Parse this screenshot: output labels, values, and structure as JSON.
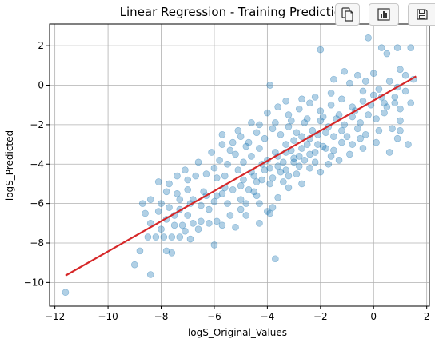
{
  "chart_data": {
    "type": "scatter",
    "title": "Linear Regression - Training Predictions",
    "xlabel": "logS_Original_Values",
    "ylabel": "logS_Predicted",
    "xlim": [
      -12.2,
      2.1
    ],
    "ylim": [
      -11.2,
      3.1
    ],
    "xticks": [
      -12,
      -10,
      -8,
      -6,
      -4,
      -2,
      0,
      2
    ],
    "yticks": [
      -10,
      -8,
      -6,
      -4,
      -2,
      0,
      2
    ],
    "xtick_labels": [
      "−12",
      "−10",
      "−8",
      "−6",
      "−4",
      "−2",
      "0",
      "2"
    ],
    "ytick_labels": [
      "−10",
      "−8",
      "−6",
      "−4",
      "−2",
      "0",
      "2"
    ],
    "grid": true,
    "series": [
      {
        "type": "scatter",
        "color": "#1f77b4",
        "alpha": 0.35,
        "points": [
          [
            -11.6,
            -10.5
          ],
          [
            -9.0,
            -9.1
          ],
          [
            -8.4,
            -9.6
          ],
          [
            -8.8,
            -8.4
          ],
          [
            -7.8,
            -8.4
          ],
          [
            -7.6,
            -8.5
          ],
          [
            -6.0,
            -8.1
          ],
          [
            -3.7,
            -8.8
          ],
          [
            -8.5,
            -7.7
          ],
          [
            -8.2,
            -7.7
          ],
          [
            -7.9,
            -7.7
          ],
          [
            -7.6,
            -7.7
          ],
          [
            -7.3,
            -7.7
          ],
          [
            -6.9,
            -7.8
          ],
          [
            -8.0,
            -7.3
          ],
          [
            -7.5,
            -7.1
          ],
          [
            -7.2,
            -7.1
          ],
          [
            -6.8,
            -7.0
          ],
          [
            -8.4,
            -7.0
          ],
          [
            -7.8,
            -6.8
          ],
          [
            -7.5,
            -6.6
          ],
          [
            -7.0,
            -6.6
          ],
          [
            -6.5,
            -6.9
          ],
          [
            -6.2,
            -7.0
          ],
          [
            -5.9,
            -6.9
          ],
          [
            -5.2,
            -7.2
          ],
          [
            -4.3,
            -7.0
          ],
          [
            -8.7,
            -6.0
          ],
          [
            -8.4,
            -5.8
          ],
          [
            -8.0,
            -6.0
          ],
          [
            -7.8,
            -5.4
          ],
          [
            -7.3,
            -5.8
          ],
          [
            -7.0,
            -5.3
          ],
          [
            -6.8,
            -5.8
          ],
          [
            -6.5,
            -6.1
          ],
          [
            -6.3,
            -5.6
          ],
          [
            -6.0,
            -5.9
          ],
          [
            -5.7,
            -5.5
          ],
          [
            -5.5,
            -6.0
          ],
          [
            -5.3,
            -5.3
          ],
          [
            -5.0,
            -5.8
          ],
          [
            -4.8,
            -6.0
          ],
          [
            -4.5,
            -5.4
          ],
          [
            -4.3,
            -6.0
          ],
          [
            -4.0,
            -6.4
          ],
          [
            -3.8,
            -6.2
          ],
          [
            -3.9,
            -6.5
          ],
          [
            -3.6,
            -5.7
          ],
          [
            -8.1,
            -4.9
          ],
          [
            -7.7,
            -5.0
          ],
          [
            -7.4,
            -4.6
          ],
          [
            -7.0,
            -4.8
          ],
          [
            -6.7,
            -4.6
          ],
          [
            -6.3,
            -4.5
          ],
          [
            -5.9,
            -4.7
          ],
          [
            -5.6,
            -4.6
          ],
          [
            -5.1,
            -4.3
          ],
          [
            -4.9,
            -4.8
          ],
          [
            -4.6,
            -4.4
          ],
          [
            -4.4,
            -4.9
          ],
          [
            -4.1,
            -4.3
          ],
          [
            -3.8,
            -4.7
          ],
          [
            -3.5,
            -4.4
          ],
          [
            -3.2,
            -4.6
          ],
          [
            -2.8,
            -4.1
          ],
          [
            -2.4,
            -4.2
          ],
          [
            -6.1,
            -3.4
          ],
          [
            -5.8,
            -3.8
          ],
          [
            -5.5,
            -4.0
          ],
          [
            -5.2,
            -3.5
          ],
          [
            -4.9,
            -3.9
          ],
          [
            -4.6,
            -3.6
          ],
          [
            -4.3,
            -3.2
          ],
          [
            -4.0,
            -3.8
          ],
          [
            -3.7,
            -3.4
          ],
          [
            -3.4,
            -3.9
          ],
          [
            -3.1,
            -3.3
          ],
          [
            -2.8,
            -3.6
          ],
          [
            -2.5,
            -3.0
          ],
          [
            -2.2,
            -3.4
          ],
          [
            -1.9,
            -3.1
          ],
          [
            -1.5,
            -3.3
          ],
          [
            -1.2,
            -2.9
          ],
          [
            -0.8,
            -3.0
          ],
          [
            -5.3,
            -2.9
          ],
          [
            -5.0,
            -2.6
          ],
          [
            -4.7,
            -2.9
          ],
          [
            -4.4,
            -2.4
          ],
          [
            -4.1,
            -2.7
          ],
          [
            -3.8,
            -2.2
          ],
          [
            -3.5,
            -2.5
          ],
          [
            -3.2,
            -2.1
          ],
          [
            -2.9,
            -2.4
          ],
          [
            -2.6,
            -1.9
          ],
          [
            -2.3,
            -2.3
          ],
          [
            -2.0,
            -1.8
          ],
          [
            -1.7,
            -2.1
          ],
          [
            -1.4,
            -1.7
          ],
          [
            -1.1,
            -2.0
          ],
          [
            -0.8,
            -1.6
          ],
          [
            -0.5,
            -1.9
          ],
          [
            -0.2,
            -1.5
          ],
          [
            0.1,
            -1.7
          ],
          [
            0.4,
            -1.4
          ],
          [
            0.7,
            -2.2
          ],
          [
            1.0,
            -1.8
          ],
          [
            -4.0,
            -1.4
          ],
          [
            -3.6,
            -1.1
          ],
          [
            -3.2,
            -1.5
          ],
          [
            -2.8,
            -1.2
          ],
          [
            -2.4,
            -0.9
          ],
          [
            -2.0,
            -1.3
          ],
          [
            -1.6,
            -1.0
          ],
          [
            -1.2,
            -0.7
          ],
          [
            -0.8,
            -1.1
          ],
          [
            -0.4,
            -0.8
          ],
          [
            0.0,
            -0.5
          ],
          [
            0.4,
            -0.9
          ],
          [
            0.8,
            -0.6
          ],
          [
            1.2,
            -0.3
          ],
          [
            -3.9,
            0.0
          ],
          [
            -1.5,
            0.3
          ],
          [
            -0.6,
            0.5
          ],
          [
            -0.2,
            2.4
          ],
          [
            0.3,
            1.9
          ],
          [
            0.5,
            1.6
          ],
          [
            0.9,
            1.9
          ],
          [
            1.4,
            1.9
          ],
          [
            -2.0,
            1.8
          ],
          [
            1.0,
            0.8
          ],
          [
            1.2,
            0.5
          ],
          [
            1.5,
            0.3
          ],
          [
            0.0,
            0.6
          ],
          [
            0.6,
            0.2
          ],
          [
            -1.1,
            0.7
          ],
          [
            -0.9,
            0.1
          ],
          [
            -0.4,
            -0.3
          ],
          [
            0.2,
            -0.2
          ],
          [
            0.9,
            -0.1
          ],
          [
            1.3,
            -3.0
          ],
          [
            0.9,
            -2.7
          ],
          [
            0.6,
            -3.4
          ],
          [
            1.0,
            -2.3
          ],
          [
            -0.5,
            -2.7
          ],
          [
            -3.3,
            -3.0
          ],
          [
            -3.0,
            -2.8
          ],
          [
            -2.7,
            -2.6
          ],
          [
            -2.4,
            -2.7
          ],
          [
            -2.1,
            -2.5
          ],
          [
            -1.8,
            -2.4
          ],
          [
            -1.5,
            -2.6
          ],
          [
            -1.2,
            -2.3
          ],
          [
            -3.6,
            -3.6
          ],
          [
            -3.3,
            -3.4
          ],
          [
            -3.0,
            -3.7
          ],
          [
            -2.7,
            -3.2
          ],
          [
            -2.4,
            -3.5
          ],
          [
            -2.1,
            -3.0
          ],
          [
            -1.8,
            -3.2
          ],
          [
            -4.2,
            -4.0
          ],
          [
            -3.9,
            -4.2
          ],
          [
            -3.6,
            -4.1
          ],
          [
            -3.3,
            -4.3
          ],
          [
            -3.0,
            -3.9
          ],
          [
            -4.5,
            -4.6
          ],
          [
            -4.2,
            -4.8
          ],
          [
            -3.9,
            -5.0
          ],
          [
            -5.0,
            -5.1
          ],
          [
            -4.7,
            -5.3
          ],
          [
            -4.4,
            -5.6
          ],
          [
            -5.6,
            -5.2
          ],
          [
            -5.9,
            -5.6
          ],
          [
            -6.4,
            -5.4
          ],
          [
            -3.4,
            -4.9
          ],
          [
            -2.9,
            -4.5
          ],
          [
            -2.6,
            -3.8
          ],
          [
            -2.2,
            -3.9
          ],
          [
            -1.6,
            -3.6
          ],
          [
            -1.0,
            -2.6
          ],
          [
            -0.6,
            -2.2
          ],
          [
            -0.3,
            -2.5
          ],
          [
            0.2,
            -2.3
          ],
          [
            0.5,
            -1.1
          ],
          [
            0.8,
            -0.9
          ],
          [
            -0.1,
            -1.0
          ],
          [
            -0.7,
            -1.3
          ],
          [
            -1.3,
            -1.5
          ],
          [
            -1.9,
            -1.6
          ],
          [
            -2.5,
            -1.7
          ],
          [
            -3.1,
            -1.8
          ],
          [
            -3.7,
            -1.9
          ],
          [
            -4.3,
            -2.0
          ],
          [
            -4.8,
            -3.1
          ],
          [
            -5.4,
            -3.3
          ],
          [
            -5.7,
            -3.0
          ],
          [
            -6.0,
            -4.2
          ],
          [
            -6.6,
            -3.9
          ],
          [
            -7.1,
            -4.3
          ],
          [
            -7.4,
            -5.5
          ],
          [
            -7.7,
            -6.2
          ],
          [
            -8.1,
            -6.4
          ],
          [
            -8.6,
            -6.5
          ],
          [
            -6.2,
            -6.3
          ],
          [
            -5.4,
            -6.6
          ],
          [
            -4.8,
            -6.6
          ],
          [
            -6.9,
            -6.0
          ],
          [
            -7.3,
            -6.3
          ],
          [
            -6.6,
            -7.3
          ],
          [
            -7.1,
            -7.4
          ],
          [
            -5.7,
            -7.1
          ],
          [
            -5.0,
            -6.3
          ],
          [
            -3.2,
            -5.2
          ],
          [
            -2.7,
            -5.0
          ],
          [
            -2.0,
            -4.4
          ],
          [
            -1.7,
            -4.0
          ],
          [
            -1.3,
            -3.8
          ],
          [
            -0.9,
            -3.5
          ],
          [
            -0.4,
            -3.2
          ],
          [
            0.1,
            -2.9
          ],
          [
            1.0,
            -1.2
          ],
          [
            1.4,
            -0.9
          ],
          [
            -0.3,
            0.2
          ],
          [
            0.3,
            -0.6
          ],
          [
            -1.6,
            -0.4
          ],
          [
            -2.2,
            -0.6
          ],
          [
            -2.7,
            -0.7
          ],
          [
            -3.3,
            -0.8
          ],
          [
            -4.6,
            -1.9
          ],
          [
            -5.1,
            -2.3
          ],
          [
            -5.7,
            -2.5
          ]
        ]
      },
      {
        "type": "line",
        "color": "#d62728",
        "points": [
          [
            -11.6,
            -9.65
          ],
          [
            1.6,
            0.45
          ]
        ]
      }
    ]
  },
  "toolbar": {
    "copy_icon": "copy-icon",
    "chart_icon": "bar-chart-icon",
    "save_icon": "save-icon"
  }
}
